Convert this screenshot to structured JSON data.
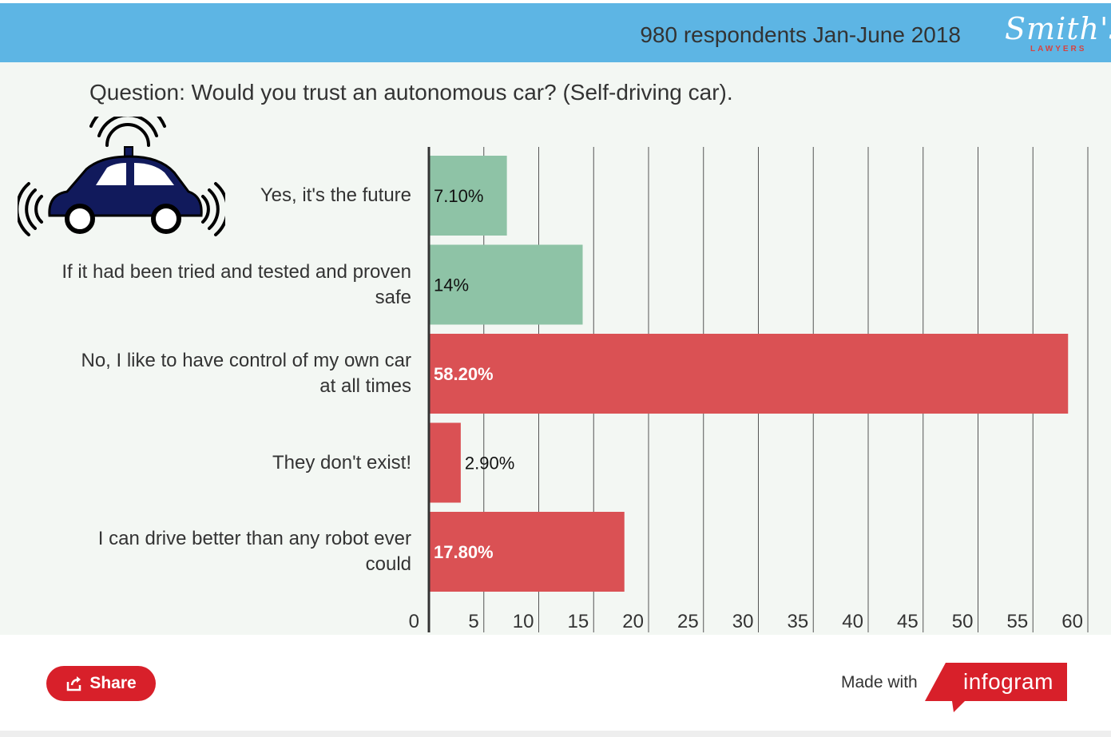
{
  "header": {
    "subtitle": "980 respondents Jan-June 2018",
    "logo_text": "Smith's",
    "logo_subtext": "LAWYERS",
    "background_color": "#5db5e4"
  },
  "question": "Question:  Would you trust an autonomous car? (Self-driving car).",
  "icons": {
    "illustration": "autonomous-car-icon",
    "share": "share-icon"
  },
  "chart_data": {
    "type": "bar",
    "orientation": "horizontal",
    "categories": [
      "Yes, it's the future",
      "If it had been tried and tested and proven safe",
      "No, I like to have control of my own car at all times",
      "They don't exist!",
      "I can drive better than any robot ever could"
    ],
    "values": [
      7.1,
      14,
      58.2,
      2.9,
      17.8
    ],
    "value_labels": [
      "7.10%",
      "14%",
      "58.20%",
      "2.90%",
      "17.80%"
    ],
    "colors": [
      "#8ec3a6",
      "#8ec3a6",
      "#da5154",
      "#da5154",
      "#da5154"
    ],
    "xlim": [
      0,
      60
    ],
    "xticks": [
      0,
      5,
      10,
      15,
      20,
      25,
      30,
      35,
      40,
      45,
      50,
      55,
      60
    ],
    "grid": true,
    "legend": "none"
  },
  "footer": {
    "share_label": "Share",
    "made_with": "Made with",
    "brand": "infogram",
    "accent_color": "#d8202a"
  }
}
